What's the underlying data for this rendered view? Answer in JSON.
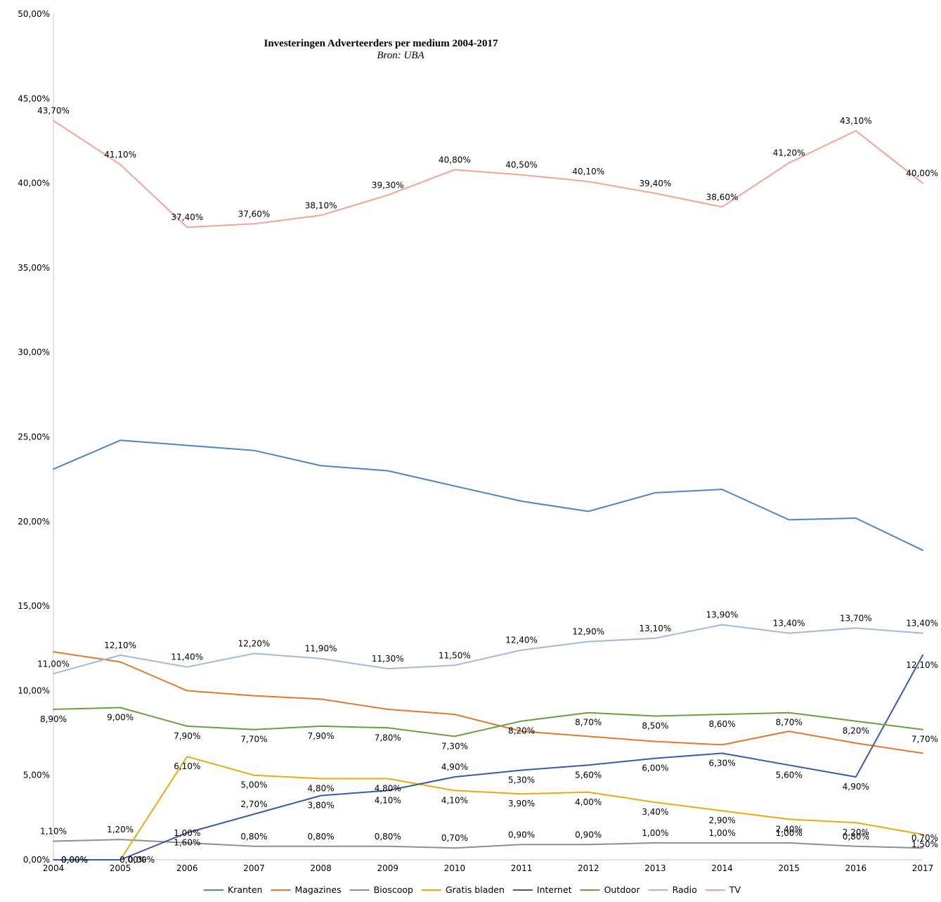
{
  "chart_data": {
    "type": "line",
    "title": "Investeringen Adverteerders per medium 2004-2017",
    "subtitle": "Bron: UBA",
    "xlabel": "",
    "ylabel": "",
    "ylim": [
      0,
      50
    ],
    "y_ticks": [
      "0,00%",
      "5,00%",
      "10,00%",
      "15,00%",
      "20,00%",
      "25,00%",
      "30,00%",
      "35,00%",
      "40,00%",
      "45,00%",
      "50,00%"
    ],
    "categories": [
      "2004",
      "2005",
      "2006",
      "2007",
      "2008",
      "2009",
      "2010",
      "2011",
      "2012",
      "2013",
      "2014",
      "2015",
      "2016",
      "2017"
    ],
    "grid": false,
    "legend_position": "bottom",
    "series": [
      {
        "name": "Kranten",
        "color": "#4e86c4",
        "values": [
          23.1,
          24.8,
          24.5,
          24.2,
          23.3,
          23.0,
          22.1,
          21.2,
          20.6,
          21.7,
          21.9,
          20.1,
          20.2,
          18.3
        ],
        "labels": [],
        "label_pos": []
      },
      {
        "name": "Magazines",
        "color": "#e07a2e",
        "values": [
          12.3,
          11.7,
          10.0,
          9.7,
          9.5,
          8.9,
          8.6,
          7.6,
          7.3,
          7.0,
          6.8,
          7.6,
          6.9,
          6.3
        ],
        "labels": [],
        "label_pos": []
      },
      {
        "name": "Bioscoop",
        "color": "#8f8f8f",
        "values": [
          1.1,
          1.2,
          1.0,
          0.8,
          0.8,
          0.8,
          0.7,
          0.9,
          0.9,
          1.0,
          1.0,
          1.0,
          0.8,
          0.7
        ],
        "labels": [
          "1,10%",
          "1,20%",
          "1,00%",
          "0,80%",
          "0,80%",
          "0,80%",
          "0,70%",
          "0,90%",
          "0,90%",
          "1,00%",
          "1,00%",
          "1,00%",
          "0,80%",
          "0,70%"
        ],
        "label_pos": [
          "above",
          "above",
          "above",
          "above",
          "above",
          "above",
          "above",
          "above",
          "above",
          "above",
          "above",
          "above",
          "above",
          "above"
        ]
      },
      {
        "name": "Gratis bladen",
        "color": "#e8ac0c",
        "values": [
          0.0,
          0.0,
          6.1,
          5.0,
          4.8,
          4.8,
          4.1,
          3.9,
          4.0,
          3.4,
          2.9,
          2.4,
          2.2,
          1.5
        ],
        "labels": [
          "0,00%",
          "0,00%",
          "6,10%",
          "5,00%",
          "4,80%",
          "4,80%",
          "4,10%",
          "3,90%",
          "4,00%",
          "3,40%",
          "2,90%",
          "2,40%",
          "2,20%",
          "1,50%"
        ],
        "label_pos": [
          "left",
          "right",
          "below",
          "below",
          "below",
          "below",
          "below",
          "below",
          "below",
          "below",
          "below",
          "below",
          "below",
          "below"
        ]
      },
      {
        "name": "Internet",
        "color": "#3a5ba6",
        "values": [
          0.0,
          0.0,
          1.6,
          2.7,
          3.8,
          4.1,
          4.9,
          5.3,
          5.6,
          6.0,
          6.3,
          5.6,
          4.9,
          12.1
        ],
        "labels": [
          "0,00%",
          "0,00%",
          "1,60%",
          "2,70%",
          "3,80%",
          "4,10%",
          "4,90%",
          "5,30%",
          "5,60%",
          "6,00%",
          "6,30%",
          "5,60%",
          "4,90%",
          "12,10%"
        ],
        "label_pos": [
          "left",
          "left",
          "below",
          "above",
          "below",
          "below",
          "above",
          "below",
          "below",
          "below",
          "below",
          "below",
          "below",
          "below"
        ]
      },
      {
        "name": "Outdoor",
        "color": "#6ba041",
        "values": [
          8.9,
          9.0,
          7.9,
          7.7,
          7.9,
          7.8,
          7.3,
          8.2,
          8.7,
          8.5,
          8.6,
          8.7,
          8.2,
          7.7
        ],
        "labels": [
          "8,90%",
          "9,00%",
          "7,90%",
          "7,70%",
          "7,90%",
          "7,80%",
          "7,30%",
          "8,20%",
          "8,70%",
          "8,50%",
          "8,60%",
          "8,70%",
          "8,20%",
          "7,70%"
        ],
        "label_pos": [
          "below",
          "below",
          "below",
          "below",
          "below",
          "below",
          "below",
          "below",
          "below",
          "below",
          "below",
          "below",
          "below",
          "below"
        ]
      },
      {
        "name": "Radio",
        "color": "#9fbadf",
        "values": [
          11.0,
          12.1,
          11.4,
          12.2,
          11.9,
          11.3,
          11.5,
          12.4,
          12.9,
          13.1,
          13.9,
          13.4,
          13.7,
          13.4
        ],
        "labels": [
          "11,00%",
          "12,10%",
          "11,40%",
          "12,20%",
          "11,90%",
          "11,30%",
          "11,50%",
          "12,40%",
          "12,90%",
          "13,10%",
          "13,90%",
          "13,40%",
          "13,70%",
          "13,40%"
        ],
        "label_pos": [
          "above",
          "above",
          "above",
          "above",
          "above",
          "above",
          "above",
          "above",
          "above",
          "above",
          "above",
          "above",
          "above",
          "above"
        ]
      },
      {
        "name": "TV",
        "color": "#f2a593",
        "values": [
          43.7,
          41.1,
          37.4,
          37.6,
          38.1,
          39.3,
          40.8,
          40.5,
          40.1,
          39.4,
          38.6,
          41.2,
          43.1,
          40.0
        ],
        "labels": [
          "43,70%",
          "41,10%",
          "37,40%",
          "37,60%",
          "38,10%",
          "39,30%",
          "40,80%",
          "40,50%",
          "40,10%",
          "39,40%",
          "38,60%",
          "41,20%",
          "43,10%",
          "40,00%"
        ],
        "label_pos": [
          "above",
          "above",
          "above",
          "above",
          "above",
          "above",
          "above",
          "above",
          "above",
          "above",
          "above",
          "above",
          "above",
          "above"
        ]
      }
    ]
  }
}
